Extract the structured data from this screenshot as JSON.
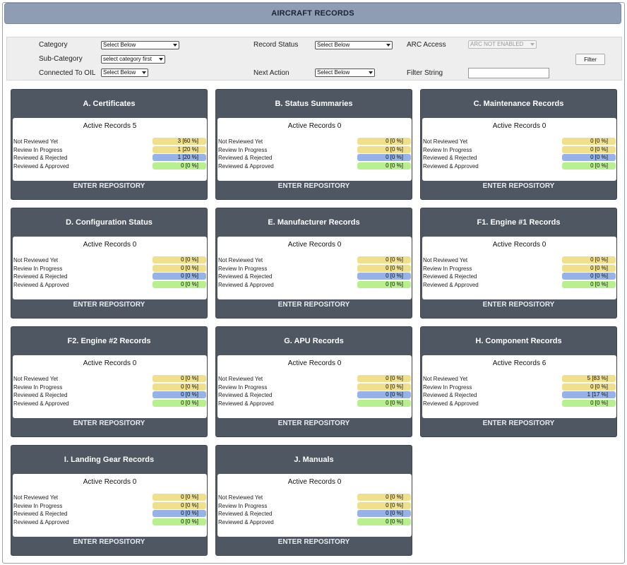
{
  "page": {
    "title": "AIRCRAFT RECORDS"
  },
  "filters": {
    "category": {
      "label": "Category",
      "value": "Select Below"
    },
    "sub_category": {
      "label": "Sub-Category",
      "value": "select category first"
    },
    "connected_to_oil": {
      "label": "Connected To OIL",
      "value": "Select Below"
    },
    "record_status": {
      "label": "Record Status",
      "value": "Select Below"
    },
    "next_action": {
      "label": "Next Action",
      "value": "Select Below"
    },
    "arc_access": {
      "label": "ARC Access",
      "value": "ARC NOT ENABLED"
    },
    "filter_string": {
      "label": "Filter String",
      "value": ""
    },
    "filter_button": "Filter"
  },
  "row_labels": {
    "not_reviewed_yet": "Not Reviewed Yet",
    "review_in_progress": "Review In Progress",
    "reviewed_rejected": "Reviewed & Rejected",
    "reviewed_approved": "Reviewed & Approved"
  },
  "status_colors": {
    "not_reviewed_yet": "#f0e08c",
    "review_in_progress": "#f0e08c",
    "reviewed_rejected": "#95b3e8",
    "reviewed_approved": "#b8f08f"
  },
  "enter_label": "ENTER REPOSITORY",
  "cards": [
    {
      "title": "A. Certificates",
      "active": "Active Records 5",
      "not_reviewed_yet": "3 [60 %]",
      "review_in_progress": "1 [20 %]",
      "reviewed_rejected": "1 [20 %]",
      "reviewed_approved": "0 [0 %]"
    },
    {
      "title": "B. Status Summaries",
      "active": "Active Records 0",
      "not_reviewed_yet": "0 [0 %]",
      "review_in_progress": "0 [0 %]",
      "reviewed_rejected": "0 [0 %]",
      "reviewed_approved": "0 [0 %]"
    },
    {
      "title": "C. Maintenance Records",
      "active": "Active Records 0",
      "not_reviewed_yet": "0 [0 %]",
      "review_in_progress": "0 [0 %]",
      "reviewed_rejected": "0 [0 %]",
      "reviewed_approved": "0 [0 %]"
    },
    {
      "title": "D. Configuration Status",
      "active": "Active Records 0",
      "not_reviewed_yet": "0 [0 %]",
      "review_in_progress": "0 [0 %]",
      "reviewed_rejected": "0 [0 %]",
      "reviewed_approved": "0 [0 %]"
    },
    {
      "title": "E. Manufacturer Records",
      "active": "Active Records 0",
      "not_reviewed_yet": "0 [0 %]",
      "review_in_progress": "0 [0 %]",
      "reviewed_rejected": "0 [0 %]",
      "reviewed_approved": "0 [0 %]"
    },
    {
      "title": "F1. Engine #1 Records",
      "active": "Active Records 0",
      "not_reviewed_yet": "0 [0 %]",
      "review_in_progress": "0 [0 %]",
      "reviewed_rejected": "0 [0 %]",
      "reviewed_approved": "0 [0 %]"
    },
    {
      "title": "F2. Engine #2 Records",
      "active": "Active Records 0",
      "not_reviewed_yet": "0 [0 %]",
      "review_in_progress": "0 [0 %]",
      "reviewed_rejected": "0 [0 %]",
      "reviewed_approved": "0 [0 %]"
    },
    {
      "title": "G. APU Records",
      "active": "Active Records 0",
      "not_reviewed_yet": "0 [0 %]",
      "review_in_progress": "0 [0 %]",
      "reviewed_rejected": "0 [0 %]",
      "reviewed_approved": "0 [0 %]"
    },
    {
      "title": "H. Component Records",
      "active": "Active Records 6",
      "not_reviewed_yet": "5 [83 %]",
      "review_in_progress": "0 [0 %]",
      "reviewed_rejected": "1 [17 %]",
      "reviewed_approved": "0 [0 %]"
    },
    {
      "title": "I. Landing Gear Records",
      "active": "Active Records 0",
      "not_reviewed_yet": "0 [0 %]",
      "review_in_progress": "0 [0 %]",
      "reviewed_rejected": "0 [0 %]",
      "reviewed_approved": "0 [0 %]"
    },
    {
      "title": "J. Manuals",
      "active": "Active Records 0",
      "not_reviewed_yet": "0 [0 %]",
      "review_in_progress": "0 [0 %]",
      "reviewed_rejected": "0 [0 %]",
      "reviewed_approved": "0 [0 %]"
    }
  ]
}
